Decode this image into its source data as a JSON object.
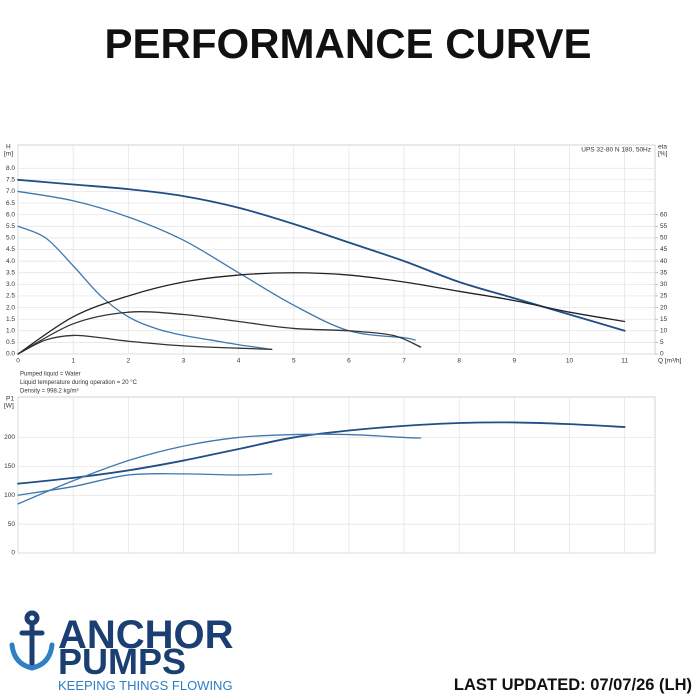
{
  "title": "PERFORMANCE CURVE",
  "chart_data": [
    {
      "type": "line",
      "annotation": "UPS 32-80 N 180, 50Hz",
      "ylabel": "H",
      "yunit": "[m]",
      "y2label": "eta",
      "y2unit": "[%]",
      "xlabel": "Q [m³/h]",
      "xlim": [
        0,
        11.55
      ],
      "xticks": [
        0,
        1,
        2,
        3,
        4,
        5,
        6,
        7,
        8,
        9,
        10,
        11
      ],
      "ylim": [
        0,
        9
      ],
      "yticks": [
        {
          "value": 0,
          "label": "0.0"
        },
        0.5,
        {
          "value": 1,
          "label": "1.0"
        },
        1.5,
        {
          "value": 2,
          "label": "2.0"
        },
        2.5,
        {
          "value": 3,
          "label": "3.0"
        },
        3.5,
        {
          "value": 4,
          "label": "4.0"
        },
        4.5,
        {
          "value": 5,
          "label": "5.0"
        },
        5.5,
        {
          "value": 6,
          "label": "6.0"
        },
        6.5,
        {
          "value": 7,
          "label": "7.0"
        },
        7.5,
        {
          "value": 8,
          "label": "8.0"
        }
      ],
      "y2lim": [
        0,
        90
      ],
      "y2ticks": [
        0,
        5,
        10,
        15,
        20,
        25,
        30,
        35,
        40,
        45,
        50,
        55,
        60
      ],
      "grid": true,
      "series": [
        {
          "color": "#1f4f86",
          "x": [
            0,
            1,
            2,
            3,
            4,
            5,
            6,
            7,
            8,
            9,
            10,
            11
          ],
          "values": [
            7.5,
            7.3,
            7.1,
            6.8,
            6.3,
            5.6,
            4.8,
            4.0,
            3.1,
            2.4,
            1.7,
            1.0
          ]
        },
        {
          "color": "#3f78b0",
          "x": [
            0,
            1,
            2,
            3,
            4,
            5,
            6,
            7,
            7.2
          ],
          "values": [
            7.0,
            6.6,
            5.9,
            4.9,
            3.5,
            2.1,
            1.0,
            0.7,
            0.6
          ]
        },
        {
          "color": "#3f78b0",
          "x": [
            0,
            0.5,
            1,
            1.5,
            2,
            2.5,
            3,
            3.5,
            4,
            4.6
          ],
          "values": [
            5.5,
            5.0,
            3.8,
            2.5,
            1.6,
            1.1,
            0.8,
            0.6,
            0.4,
            0.2
          ]
        },
        {
          "color": "#222222",
          "axis": "y2",
          "x": [
            0,
            1,
            2,
            3,
            4,
            5,
            6,
            7,
            8,
            9,
            10,
            11
          ],
          "values": [
            0,
            16,
            25,
            31,
            34,
            35,
            34,
            31,
            27,
            23,
            18,
            14
          ]
        },
        {
          "color": "#333333",
          "axis": "y2",
          "x": [
            0,
            1,
            2,
            3,
            4,
            5,
            6,
            6.8,
            7.3
          ],
          "values": [
            0,
            13,
            18,
            17,
            14,
            11,
            10,
            8,
            3
          ]
        },
        {
          "color": "#333333",
          "axis": "y2",
          "x": [
            0,
            0.5,
            1,
            1.5,
            2,
            3,
            4,
            4.6
          ],
          "values": [
            0,
            6,
            8,
            7,
            5.5,
            3.5,
            2.5,
            2
          ]
        }
      ],
      "notes": [
        "Pumped liquid = Water",
        "Liquid temperature during operation = 20 °C",
        "Density = 998.2 kg/m³"
      ]
    },
    {
      "type": "line",
      "ylabel": "P1",
      "yunit": "[W]",
      "xlim": [
        0,
        11.55
      ],
      "ylim": [
        0,
        270
      ],
      "yticks": [
        0,
        50,
        100,
        150,
        200
      ],
      "grid": true,
      "series": [
        {
          "color": "#1f4f86",
          "x": [
            0,
            1,
            2,
            3,
            4,
            5,
            6,
            7,
            8,
            9,
            10,
            11
          ],
          "values": [
            120,
            130,
            143,
            160,
            180,
            200,
            212,
            220,
            225,
            226,
            223,
            218
          ]
        },
        {
          "color": "#3f78b0",
          "x": [
            0,
            1,
            2,
            3,
            4,
            5,
            6,
            7,
            7.3
          ],
          "values": [
            85,
            125,
            160,
            185,
            200,
            205,
            205,
            200,
            199
          ]
        },
        {
          "color": "#3f78b0",
          "x": [
            0,
            1,
            2,
            3,
            4,
            4.6
          ],
          "values": [
            100,
            115,
            135,
            137,
            135,
            137
          ]
        }
      ]
    }
  ],
  "logo": {
    "line1": "ANCHOR",
    "line2": "PUMPS",
    "tagline": "KEEPING THINGS FLOWING"
  },
  "footer": {
    "last_updated": "LAST UPDATED: 07/07/26 (LH)"
  }
}
